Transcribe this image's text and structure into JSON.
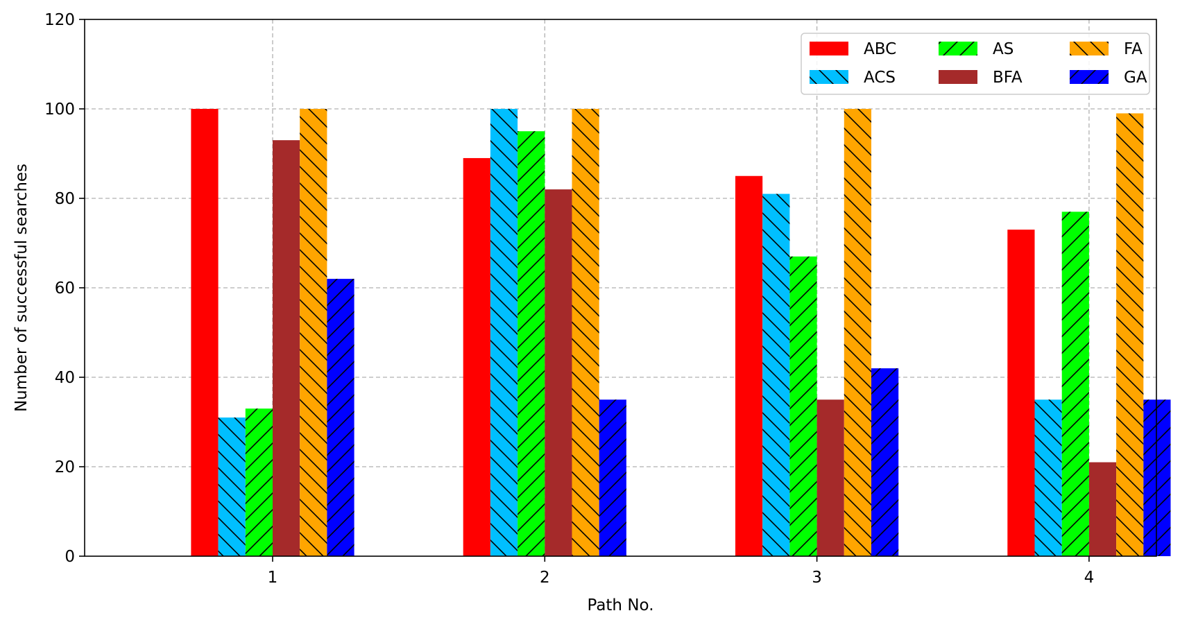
{
  "chart_data": {
    "type": "bar",
    "categories": [
      "1",
      "2",
      "3",
      "4"
    ],
    "xlabel": "Path No.",
    "ylabel": "Number of successful searches",
    "ylim": [
      0,
      120
    ],
    "yticks": [
      "0",
      "20",
      "40",
      "60",
      "80",
      "100",
      "120"
    ],
    "grid": true,
    "legend_position": "top-right",
    "series": [
      {
        "name": "ABC",
        "values": [
          100,
          89,
          85,
          73
        ],
        "color": "#ff0000",
        "hatch": "none"
      },
      {
        "name": "ACS",
        "values": [
          31,
          100,
          81,
          35
        ],
        "color": "#00bfff",
        "hatch": "backslash"
      },
      {
        "name": "AS",
        "values": [
          33,
          95,
          67,
          77
        ],
        "color": "#00ff00",
        "hatch": "slash"
      },
      {
        "name": "BFA",
        "values": [
          93,
          82,
          35,
          21
        ],
        "color": "#a52a2a",
        "hatch": "none"
      },
      {
        "name": "FA",
        "values": [
          100,
          100,
          100,
          99
        ],
        "color": "#ffa500",
        "hatch": "backslash"
      },
      {
        "name": "GA",
        "values": [
          62,
          35,
          42,
          35
        ],
        "color": "#0000ff",
        "hatch": "slash"
      }
    ]
  }
}
